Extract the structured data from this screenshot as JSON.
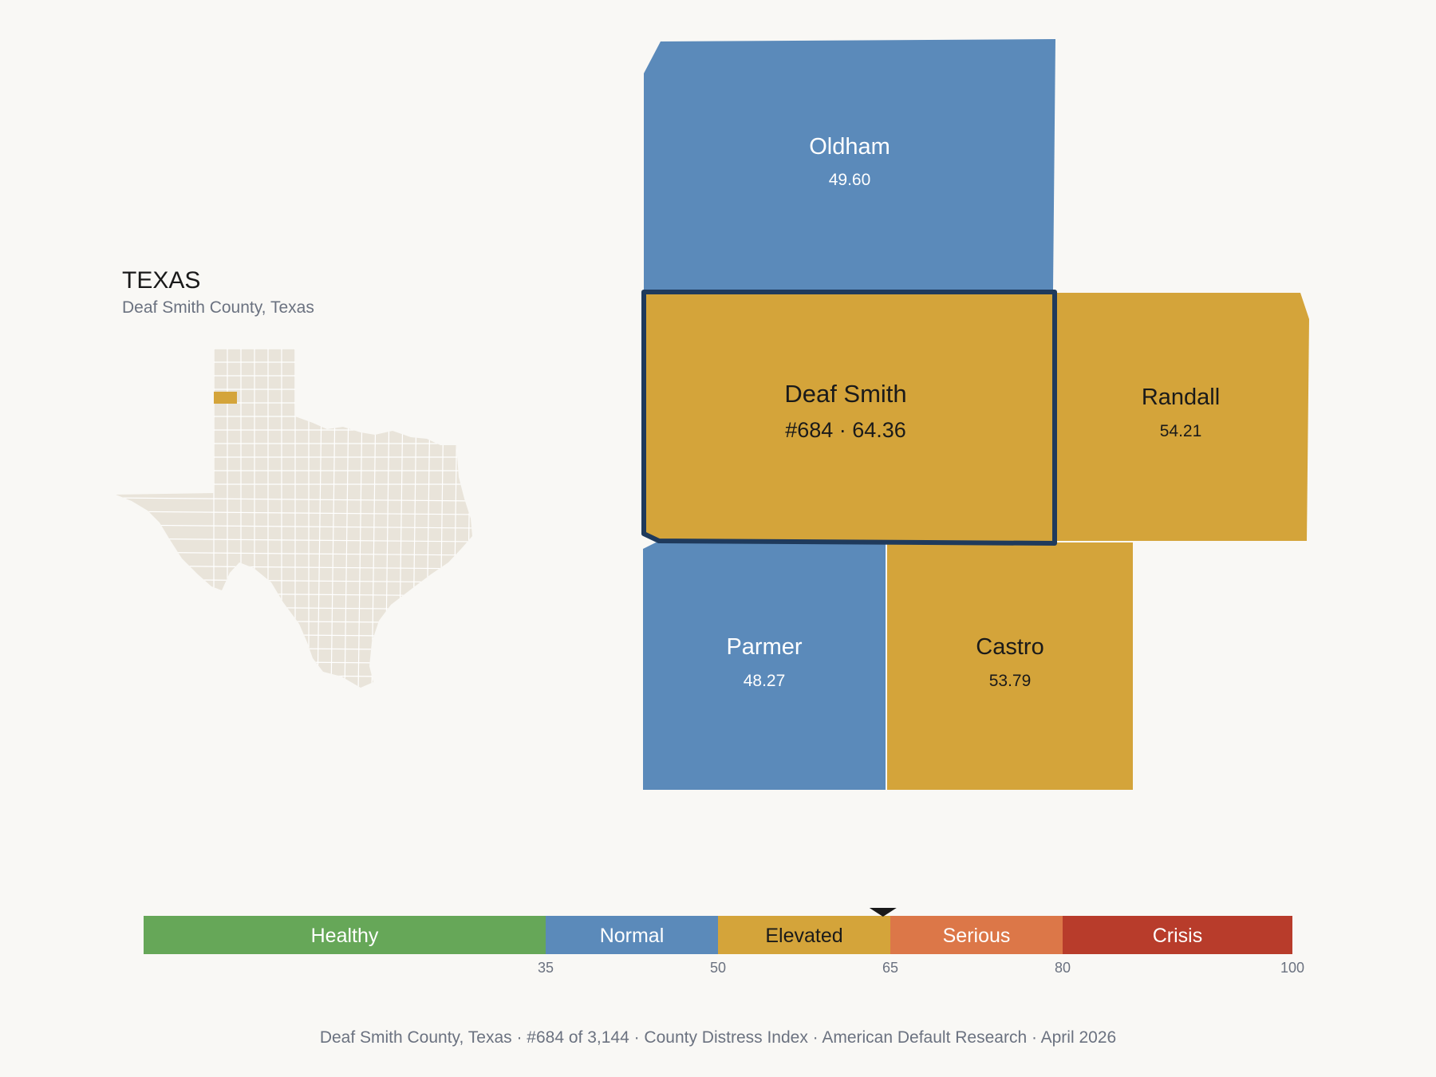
{
  "inset": {
    "state_title": "TEXAS",
    "subtitle": "Deaf Smith County, Texas"
  },
  "colors": {
    "background": "#f9f8f5",
    "normal": "#5b8aba",
    "elevated": "#d4a43a",
    "healthy": "#66a758",
    "serious": "#dc7748",
    "crisis": "#b83c2b",
    "focus_outline": "#1f3a5c",
    "inset_fill": "#e9e4da"
  },
  "counties": [
    {
      "name": "Oldham",
      "value": "49.60",
      "category": "normal"
    },
    {
      "name": "Randall",
      "value": "54.21",
      "category": "elevated"
    },
    {
      "name": "Parmer",
      "value": "48.27",
      "category": "normal"
    },
    {
      "name": "Castro",
      "value": "53.79",
      "category": "elevated"
    }
  ],
  "focus": {
    "name": "Deaf Smith",
    "label": "#684 · 64.36",
    "rank": 684,
    "score": 64.36,
    "category": "elevated"
  },
  "scale": {
    "min": 0,
    "max": 100,
    "marker_value": 64.36,
    "bands": [
      {
        "label": "Healthy",
        "from": 0,
        "to": 35,
        "color": "#66a758"
      },
      {
        "label": "Normal",
        "from": 35,
        "to": 50,
        "color": "#5b8aba"
      },
      {
        "label": "Elevated",
        "from": 50,
        "to": 65,
        "color": "#d4a43a"
      },
      {
        "label": "Serious",
        "from": 65,
        "to": 80,
        "color": "#dc7748"
      },
      {
        "label": "Crisis",
        "from": 80,
        "to": 100,
        "color": "#b83c2b"
      }
    ],
    "ticks": [
      "35",
      "50",
      "65",
      "80",
      "100"
    ]
  },
  "footer": {
    "items": [
      "Deaf Smith County, Texas",
      "#684 of 3,144",
      "County Distress Index",
      "American Default Research",
      "April 2026"
    ]
  }
}
